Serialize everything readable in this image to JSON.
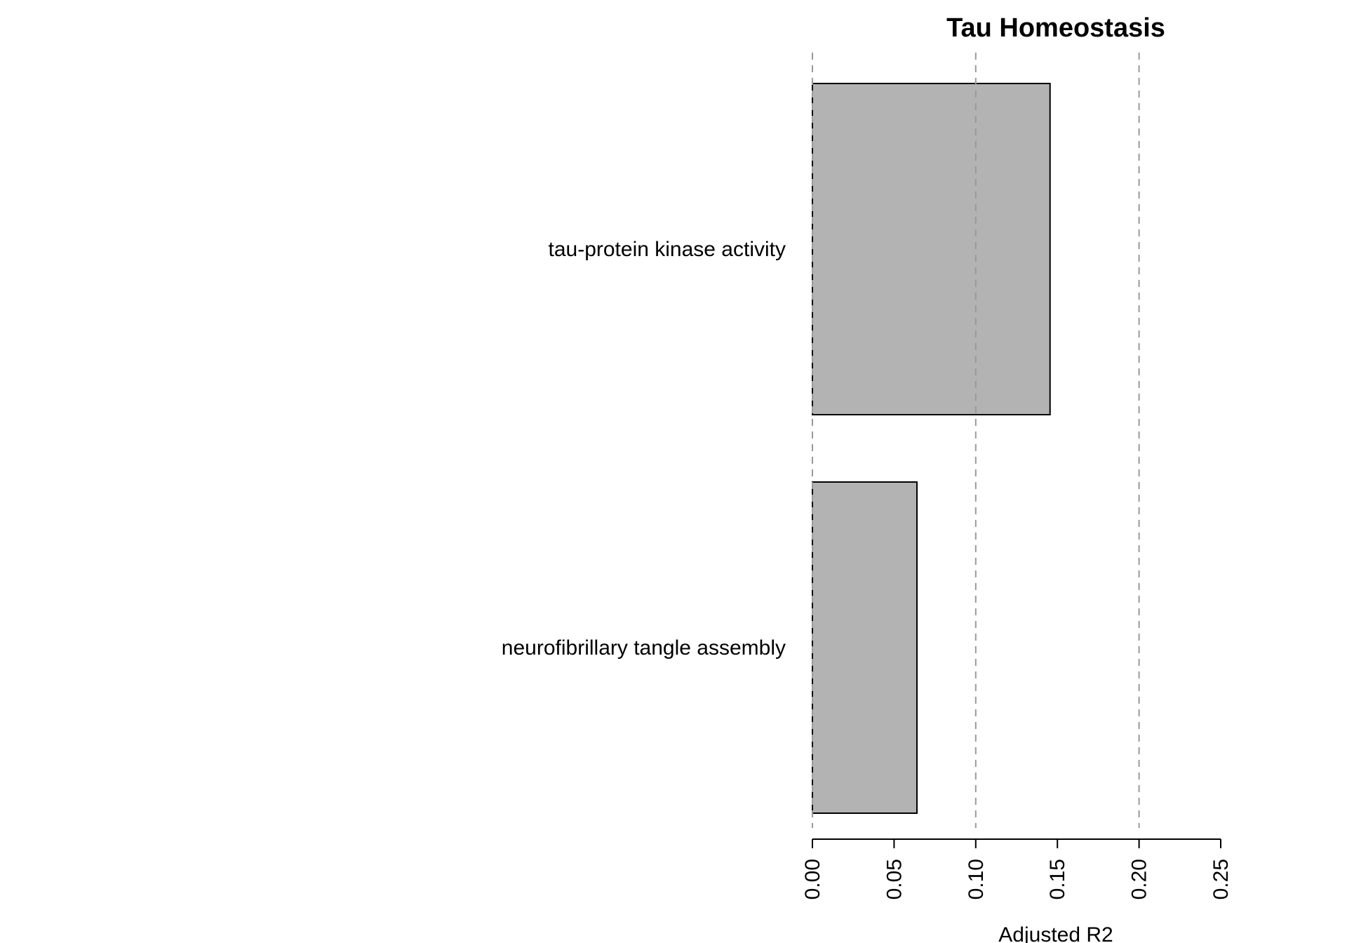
{
  "chart_data": {
    "type": "bar",
    "orientation": "horizontal",
    "title": "Tau Homeostasis",
    "xlabel": "Adjusted R2",
    "ylabel": "",
    "categories": [
      "neurofibrillary tangle assembly",
      "tau-protein kinase activity"
    ],
    "values": [
      0.064,
      0.1455
    ],
    "xlim": [
      0,
      0.25
    ],
    "ticks": [
      "0.00",
      "0.05",
      "0.10",
      "0.15",
      "0.20",
      "0.25"
    ],
    "tick_values": [
      0,
      0.05,
      0.1,
      0.15,
      0.2,
      0.25
    ],
    "reference_lines": [
      0,
      0.1,
      0.2
    ],
    "grid": false,
    "bar_color": "#b3b3b3",
    "bar_edge_color": "#000000",
    "reference_line_color": "#999999"
  }
}
